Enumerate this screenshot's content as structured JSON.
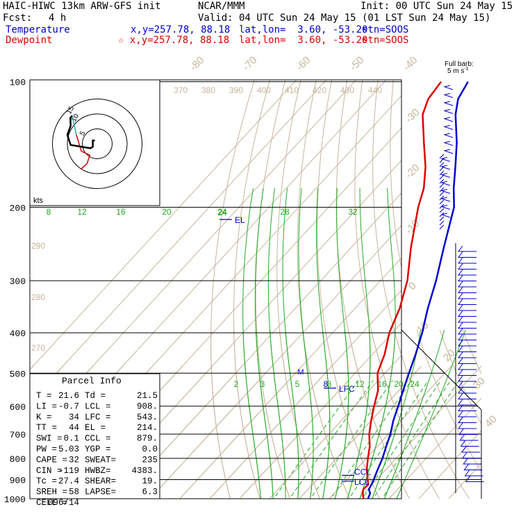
{
  "header": {
    "model": "HAIC-HIWC 13km ARW-GFS init",
    "org": "NCAR/MMM",
    "init": "Init: 00 UTC Sun 24 May 15",
    "fcst_label": "Fcst:",
    "fcst_value": "4 h",
    "valid": "Valid: 04 UTC Sun 24 May 15 (01 LST Sun 24 May 15)",
    "temp_label": "Temperature",
    "temp_xy": "x,y=257.78, 88.18",
    "temp_latlon": "lat,lon=  3.60, -53.20",
    "temp_stn": "stn=SOOS",
    "dew_label": "Dewpoint",
    "dew_xy": "☆ x,y=257.78, 88.18",
    "dew_latlon": "lat,lon=  3.60, -53.20",
    "dew_stn": "stn=SOOS",
    "colors": {
      "temperature": "#0000cc",
      "dewpoint": "#dd0000"
    }
  },
  "barb_label_1": "Full barb:",
  "barb_label_2": "5 m s",
  "barb_label_exp": "-1",
  "hodo_label": "kts",
  "hodo_rings": [
    "15",
    "10",
    "5"
  ],
  "parcel": {
    "title": "Parcel Info",
    "rows": [
      [
        "T  =",
        "21.6",
        "Td =",
        "21.5"
      ],
      [
        "LI =",
        "-0.7",
        "LCL =",
        "908."
      ],
      [
        "K  =",
        "34",
        "LFC =",
        "543."
      ],
      [
        "TT =",
        "44",
        "EL =",
        "214."
      ],
      [
        "SWI =",
        "0.1",
        "CCL =",
        "879."
      ],
      [
        "PW =",
        "5.03",
        "YGP =",
        "0.0"
      ],
      [
        "CAPE =",
        "32",
        "SWEAT=",
        "235"
      ],
      [
        "CIN =",
        "-119",
        "HWBZ=",
        "4383."
      ],
      [
        "Tc =",
        "27.4",
        "SHEAR=",
        "19."
      ],
      [
        "SREH =",
        "58",
        "LAPSE=",
        "6.3"
      ],
      [
        "CELL =",
        "096/14",
        "",
        ""
      ]
    ]
  },
  "chart_data": {
    "type": "line",
    "title": "",
    "xlabel": "",
    "ylabel": "",
    "pressure_ticks": [
      100,
      200,
      300,
      400,
      500,
      600,
      700,
      800,
      900,
      1000
    ],
    "isotherm_labels": [
      "-80",
      "-70",
      "-60",
      "-50",
      "-40",
      "-30",
      "-20",
      "-10",
      "0",
      "10",
      "20",
      "30",
      "40"
    ],
    "theta_labels": [
      "370",
      "380",
      "390",
      "400",
      "410",
      "420",
      "430",
      "440"
    ],
    "theta_side_labels": [
      "290",
      "280",
      "270"
    ],
    "mixing_ratio_upper_labels": [
      "8",
      "12",
      "16",
      "20",
      "24",
      "28",
      "32"
    ],
    "mixing_ratio_lower_labels": [
      "2",
      "3",
      "5",
      "8",
      "12",
      "16",
      "20",
      "24"
    ],
    "level_labels": [
      "EL",
      "LFC",
      "CCL",
      "LCL"
    ],
    "series": [
      {
        "name": "Temperature",
        "points": [
          [
            1000,
            23.0
          ],
          [
            970,
            22.0
          ],
          [
            950,
            20.4
          ],
          [
            925,
            19.8
          ],
          [
            900,
            19.0
          ],
          [
            850,
            17.2
          ],
          [
            800,
            15.4
          ],
          [
            750,
            13.0
          ],
          [
            700,
            10.6
          ],
          [
            650,
            7.4
          ],
          [
            600,
            4.6
          ],
          [
            550,
            1.4
          ],
          [
            500,
            -2.0
          ],
          [
            450,
            -5.6
          ],
          [
            400,
            -10.0
          ],
          [
            350,
            -15.6
          ],
          [
            300,
            -21.4
          ],
          [
            250,
            -29.0
          ],
          [
            200,
            -38.0
          ],
          [
            180,
            -44.0
          ],
          [
            160,
            -50.0
          ],
          [
            140,
            -57.0
          ],
          [
            120,
            -66.0
          ],
          [
            110,
            -70.0
          ],
          [
            100,
            -72.0
          ]
        ]
      },
      {
        "name": "Dewpoint",
        "points": [
          [
            1000,
            21.5
          ],
          [
            970,
            19.5
          ],
          [
            950,
            18.5
          ],
          [
            925,
            18.7
          ],
          [
            900,
            17.0
          ],
          [
            850,
            13.5
          ],
          [
            800,
            10.5
          ],
          [
            750,
            7.5
          ],
          [
            700,
            3.5
          ],
          [
            650,
            0.0
          ],
          [
            600,
            -3.5
          ],
          [
            550,
            -7.0
          ],
          [
            500,
            -12.5
          ],
          [
            450,
            -16.0
          ],
          [
            400,
            -21.0
          ],
          [
            350,
            -25.0
          ],
          [
            300,
            -31.0
          ],
          [
            250,
            -40.0
          ],
          [
            200,
            -50.0
          ],
          [
            180,
            -54.0
          ],
          [
            160,
            -60.0
          ],
          [
            140,
            -68.0
          ],
          [
            120,
            -77.0
          ],
          [
            110,
            -80.0
          ],
          [
            100,
            -81.0
          ]
        ]
      }
    ],
    "hodograph": {
      "rings": [
        5,
        10,
        15
      ],
      "points": [
        [
          -5.5,
          -8.5
        ],
        [
          -3.4,
          -6.6
        ],
        [
          -2.5,
          -3.8
        ],
        [
          -5.3,
          -2.5
        ],
        [
          -7.0,
          3.0
        ],
        [
          -8.4,
          9.4
        ],
        [
          -9.0,
          8.7
        ],
        [
          -8.9,
          6.0
        ],
        [
          -10.0,
          3.0
        ],
        [
          -8.9,
          -0.4
        ],
        [
          -2.3,
          -1.5
        ],
        [
          -1.5,
          -1.0
        ],
        [
          -1.5,
          1.1
        ],
        [
          -0.8,
          1.1
        ]
      ]
    },
    "wind_profile": [
      [
        1000,
        8
      ],
      [
        950,
        12
      ],
      [
        900,
        14
      ],
      [
        850,
        16
      ],
      [
        800,
        16
      ],
      [
        700,
        16
      ],
      [
        600,
        14
      ],
      [
        500,
        12
      ],
      [
        400,
        12
      ],
      [
        300,
        12
      ],
      [
        250,
        12
      ],
      [
        200,
        10
      ],
      [
        150,
        16
      ],
      [
        120,
        22
      ],
      [
        100,
        20
      ]
    ]
  }
}
